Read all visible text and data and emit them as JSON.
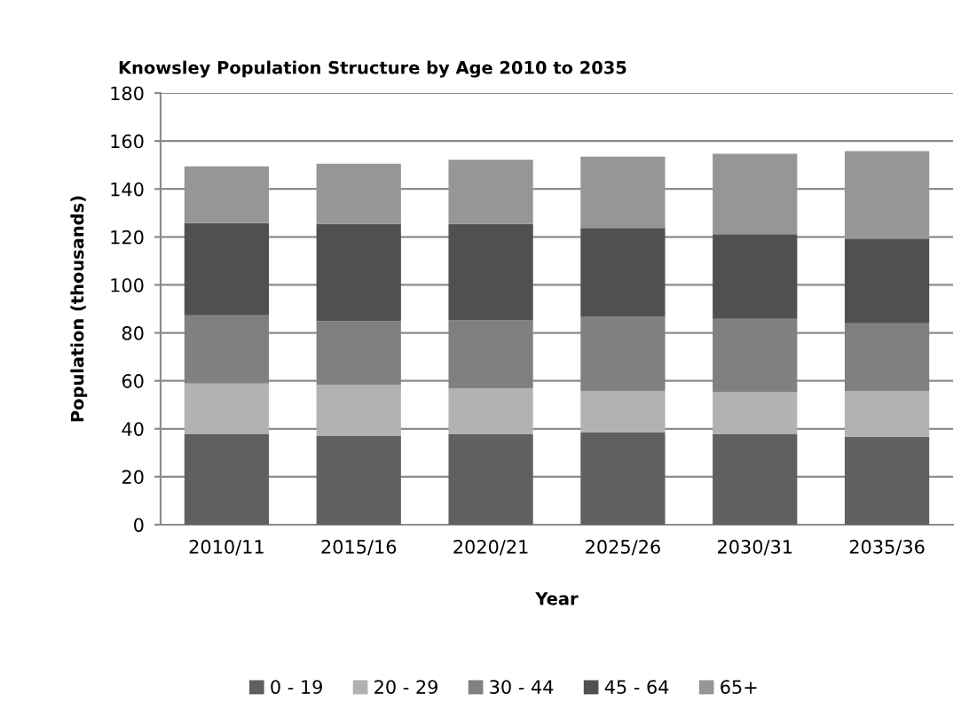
{
  "chart_data": {
    "type": "bar",
    "title": "Knowsley Population Structure by Age 2010 to 2035",
    "xlabel": "Year",
    "ylabel": "Population (thousands)",
    "categories": [
      "2010/11",
      "2015/16",
      "2020/21",
      "2025/26",
      "2030/31",
      "2035/36"
    ],
    "series": [
      {
        "name": "0 - 19",
        "color": "#606060",
        "values": [
          37.9,
          37.0,
          37.7,
          38.5,
          37.9,
          36.7
        ]
      },
      {
        "name": "20 - 29",
        "color": "#b2b2b2",
        "values": [
          21.0,
          21.3,
          19.1,
          17.1,
          17.4,
          19.0
        ]
      },
      {
        "name": "30 - 44",
        "color": "#808080",
        "values": [
          28.4,
          26.6,
          28.4,
          31.1,
          30.5,
          28.3
        ]
      },
      {
        "name": "45 - 64",
        "color": "#505050",
        "values": [
          38.5,
          40.5,
          40.2,
          37.0,
          35.3,
          35.3
        ]
      },
      {
        "name": "65+",
        "color": "#969696",
        "values": [
          23.6,
          25.1,
          26.8,
          29.8,
          33.6,
          36.5
        ]
      }
    ],
    "stacked": true,
    "ylim": [
      0,
      180
    ],
    "yticks": [
      0,
      20,
      40,
      60,
      80,
      100,
      120,
      140,
      160,
      180
    ],
    "grid": "y",
    "legend": "bottom"
  }
}
